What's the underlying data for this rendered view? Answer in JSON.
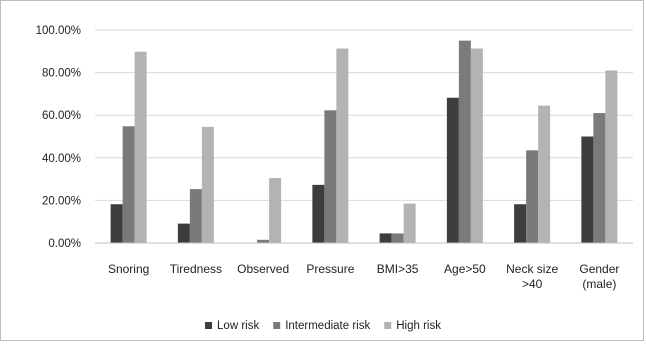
{
  "chart_data": {
    "type": "bar",
    "categories": [
      [
        "Snoring"
      ],
      [
        "Tiredness"
      ],
      [
        "Observed"
      ],
      [
        "Pressure"
      ],
      [
        "BMI>35"
      ],
      [
        "Age>50"
      ],
      [
        "Neck size",
        ">40"
      ],
      [
        "Gender",
        "(male)"
      ]
    ],
    "series": [
      {
        "name": "Low risk",
        "color": "#3d3d3d",
        "values": [
          18.2,
          9.1,
          0.0,
          27.3,
          4.5,
          68.2,
          18.2,
          50.0
        ]
      },
      {
        "name": "Intermediate risk",
        "color": "#7a7a7a",
        "values": [
          54.8,
          25.3,
          1.5,
          62.3,
          4.5,
          95.0,
          43.5,
          61.0
        ]
      },
      {
        "name": "High risk",
        "color": "#b3b3b3",
        "values": [
          89.8,
          54.5,
          30.5,
          91.3,
          18.5,
          91.3,
          64.5,
          81.0
        ]
      }
    ],
    "ylim": [
      0,
      100
    ],
    "yticks": [
      "0.00%",
      "20.00%",
      "40.00%",
      "60.00%",
      "80.00%",
      "100.00%"
    ],
    "gridlines": true,
    "legend_position": "bottom"
  }
}
